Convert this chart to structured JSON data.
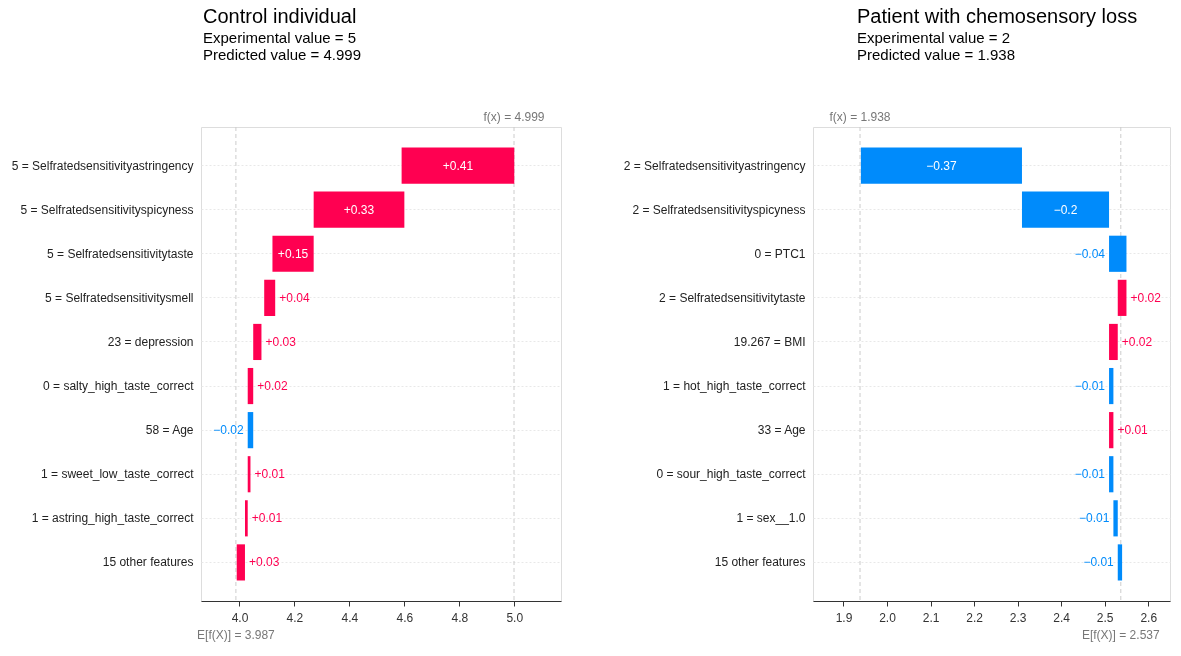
{
  "chart_data": [
    {
      "type": "bar",
      "orientation": "horizontal",
      "title": "Control individual",
      "subtitle": "Experimental value = 5\nPredicted value = 4.999",
      "categories": [
        "5 = Selfratedsensitivityastringency",
        "5 = Selfratedsensitivityspicyness",
        "5 = Selfratedsensitivitytaste",
        "5 = Selfratedsensitivitysmell",
        "23 = depression",
        "0 = salty_high_taste_correct",
        "58 = Age",
        "1 = sweet_low_taste_correct",
        "1 = astring_high_taste_correct",
        "15 other features"
      ],
      "values": [
        0.41,
        0.33,
        0.15,
        0.04,
        0.03,
        0.02,
        -0.02,
        0.01,
        0.01,
        0.03
      ],
      "base": [
        4.59,
        4.27,
        4.12,
        4.09,
        4.05,
        4.03,
        4.05,
        4.03,
        4.02,
        3.99
      ],
      "colors": [
        "#ff0051",
        "#ff0051",
        "#ff0051",
        "#ff0051",
        "#ff0051",
        "#ff0051",
        "#008bfb",
        "#ff0051",
        "#ff0051",
        "#ff0051"
      ],
      "value_labels": [
        "+0.41",
        "+0.33",
        "+0.15",
        "+0.04",
        "+0.03",
        "+0.02",
        "−0.02",
        "+0.01",
        "+0.01",
        "+0.03"
      ],
      "xlim": [
        3.86,
        5.17
      ],
      "xticks": [
        {
          "value": 4,
          "label": "4.0"
        },
        4.2,
        4.4,
        4.6,
        4.8,
        {
          "value": 5,
          "label": "5.0"
        }
      ],
      "grid": "y",
      "ref_lines": [
        {
          "axis": "x",
          "value": 4.999,
          "label": "f(x) = 4.999",
          "color": "#cccccc",
          "line_style": "dashed"
        },
        {
          "axis": "x",
          "value": 3.987,
          "label": "E[f(X)] = 3.987",
          "color": "#cccccc",
          "line_style": "dashed"
        }
      ]
    },
    {
      "type": "bar",
      "orientation": "horizontal",
      "title": "Patient with chemosensory loss",
      "subtitle": "Experimental value = 2\nPredicted value = 1.938",
      "categories": [
        "2 = Selfratedsensitivityastringency",
        "2 = Selfratedsensitivityspicyness",
        "0 = PTC1",
        "2 = Selfratedsensitivitytaste",
        "19.267 = BMI",
        "1 = hot_high_taste_correct",
        "33 = Age",
        "0 = sour_high_taste_correct",
        "1 = sex__1.0",
        "15 other features"
      ],
      "values": [
        -0.37,
        -0.2,
        -0.04,
        0.02,
        0.02,
        -0.01,
        0.01,
        -0.01,
        -0.01,
        -0.01
      ],
      "base": [
        2.31,
        2.51,
        2.55,
        2.53,
        2.51,
        2.52,
        2.51,
        2.52,
        2.53,
        2.54
      ],
      "colors": [
        "#008bfb",
        "#008bfb",
        "#008bfb",
        "#ff0051",
        "#ff0051",
        "#008bfb",
        "#ff0051",
        "#008bfb",
        "#008bfb",
        "#008bfb"
      ],
      "value_labels": [
        "−0.37",
        "−0.2",
        "−0.04",
        "+0.02",
        "+0.02",
        "−0.01",
        "+0.01",
        "−0.01",
        "−0.01",
        "−0.01"
      ],
      "xlim": [
        1.83,
        2.65
      ],
      "xticks": [
        1.9,
        {
          "value": 2,
          "label": "2.0"
        },
        2.1,
        2.2,
        2.3,
        2.4,
        2.5,
        2.6
      ],
      "grid": "y",
      "ref_lines": [
        {
          "axis": "x",
          "value": 1.938,
          "label": "f(x) = 1.938",
          "color": "#cccccc",
          "line_style": "dashed"
        },
        {
          "axis": "x",
          "value": 2.537,
          "label": "E[f(X)] = 2.537",
          "color": "#cccccc",
          "line_style": "dashed"
        }
      ]
    }
  ]
}
